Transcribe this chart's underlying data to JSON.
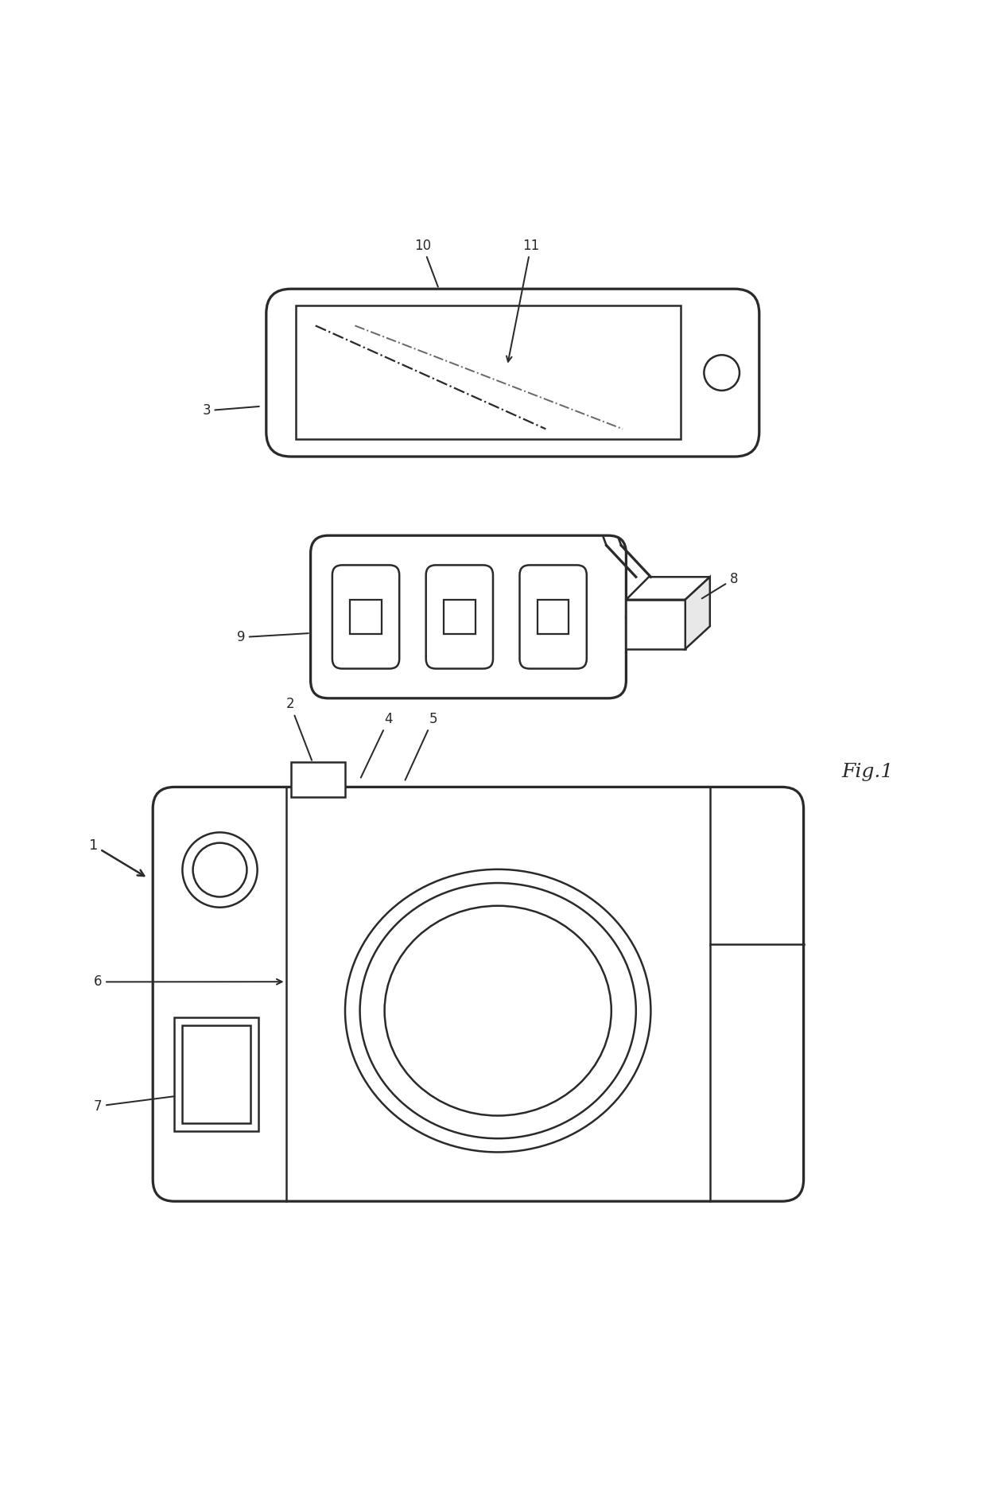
{
  "bg_color": "#ffffff",
  "line_color": "#2a2a2a",
  "line_width": 1.8,
  "fig_label": "Fig.1"
}
